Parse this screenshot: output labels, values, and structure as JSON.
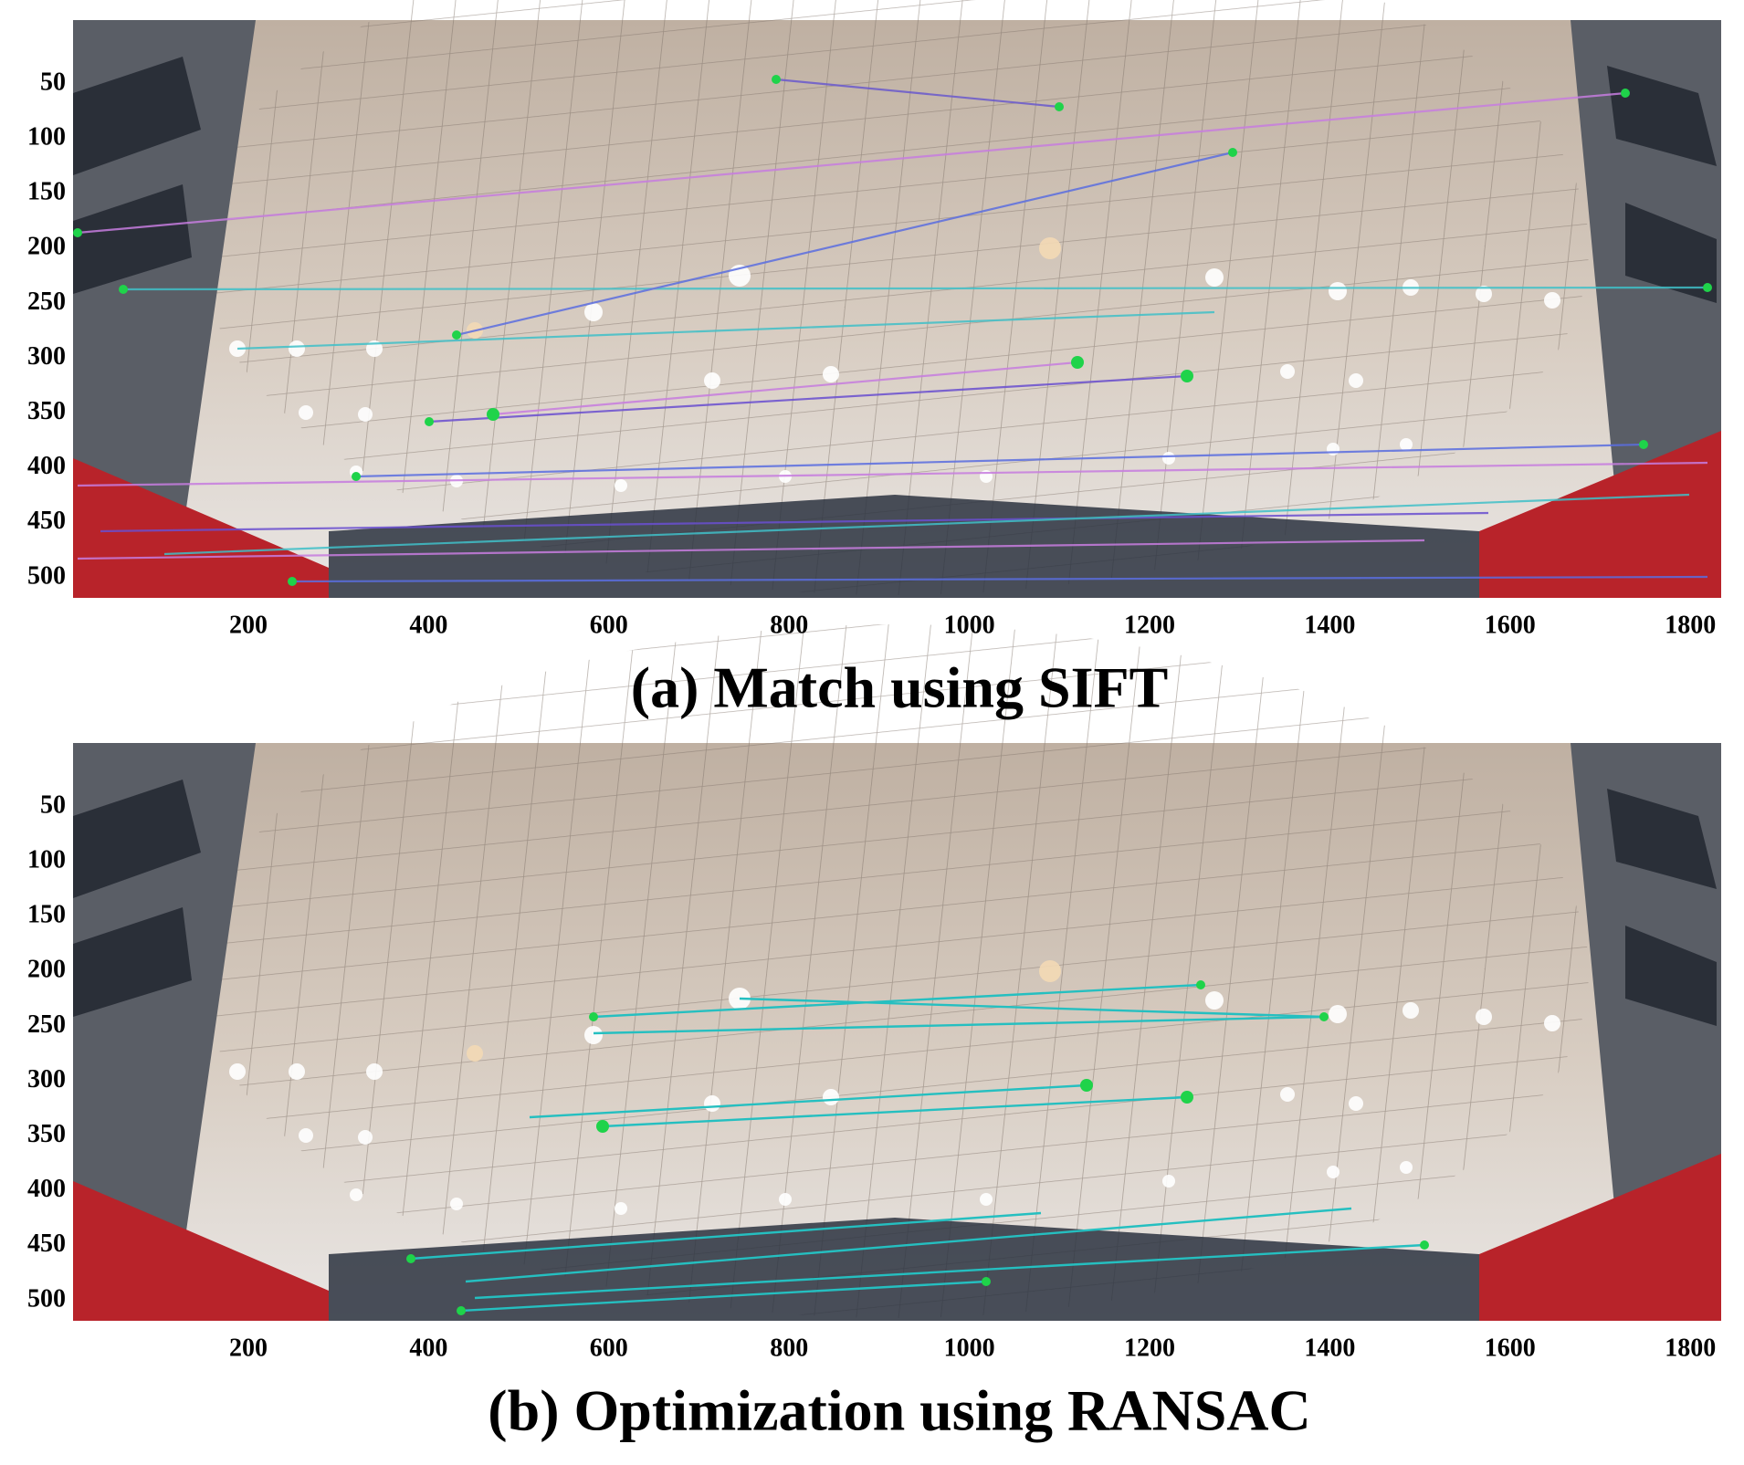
{
  "panels": [
    {
      "caption": "(a) Match using SIFT",
      "xticks": [
        200,
        400,
        600,
        800,
        1000,
        1200,
        1400,
        1600,
        1800
      ],
      "yticks": [
        50,
        100,
        150,
        200,
        250,
        300,
        350,
        400,
        450,
        500
      ]
    },
    {
      "caption": "(b) Optimization using RANSAC",
      "xticks": [
        200,
        400,
        600,
        800,
        1000,
        1200,
        1400,
        1600,
        1800
      ],
      "yticks": [
        50,
        100,
        150,
        200,
        250,
        300,
        350,
        400,
        450,
        500
      ]
    }
  ]
}
